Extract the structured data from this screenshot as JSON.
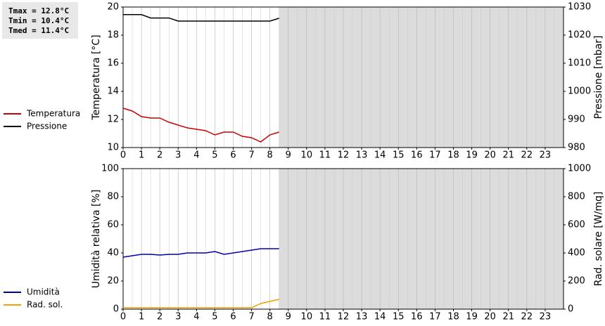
{
  "stats": [
    "Tmax = 12.8°C",
    "Tmin = 10.4°C",
    "Tmed = 11.4°C"
  ],
  "chart_data": [
    {
      "type": "line",
      "ylabel": "Temperatura [°C]",
      "y2label": "Pressione [mbar]",
      "x": [
        0,
        0.5,
        1,
        1.5,
        2,
        2.5,
        3,
        3.5,
        4,
        4.5,
        5,
        5.5,
        6,
        6.5,
        7,
        7.5,
        8,
        8.5
      ],
      "xlim": [
        0,
        24
      ],
      "xticks": [
        0,
        1,
        2,
        3,
        4,
        5,
        6,
        7,
        8,
        9,
        10,
        11,
        12,
        13,
        14,
        15,
        16,
        17,
        18,
        19,
        20,
        21,
        22,
        23
      ],
      "ylim": [
        10,
        20
      ],
      "yticks": [
        10,
        12,
        14,
        16,
        18,
        20
      ],
      "y2lim": [
        980,
        1030
      ],
      "y2ticks": [
        980,
        990,
        1000,
        1010,
        1020,
        1030
      ],
      "grid": true,
      "series": [
        {
          "name": "Temperatura",
          "color": "#cc0000",
          "values": [
            12.8,
            12.6,
            12.2,
            12.1,
            12.1,
            11.8,
            11.6,
            11.4,
            11.3,
            11.2,
            10.9,
            11.1,
            11.1,
            10.8,
            10.7,
            10.4,
            10.9,
            11.1
          ]
        },
        {
          "name": "Pressione",
          "color": "#000000",
          "axis": "y2",
          "values": [
            1027.3,
            1027.3,
            1027.3,
            1026.1,
            1026.1,
            1026.1,
            1025,
            1025,
            1025,
            1025,
            1025,
            1025,
            1025,
            1025,
            1025,
            1025,
            1025,
            1026
          ]
        }
      ]
    },
    {
      "type": "line",
      "ylabel": "Umidità relativa [%]",
      "y2label": "Rad. solare [W/mq]",
      "x": [
        0,
        0.5,
        1,
        1.5,
        2,
        2.5,
        3,
        3.5,
        4,
        4.5,
        5,
        5.5,
        6,
        6.5,
        7,
        7.5,
        8,
        8.5
      ],
      "xlim": [
        0,
        24
      ],
      "xticks": [
        0,
        1,
        2,
        3,
        4,
        5,
        6,
        7,
        8,
        9,
        10,
        11,
        12,
        13,
        14,
        15,
        16,
        17,
        18,
        19,
        20,
        21,
        22,
        23
      ],
      "ylim": [
        0,
        100
      ],
      "yticks": [
        0,
        20,
        40,
        60,
        80,
        100
      ],
      "y2lim": [
        0,
        1000
      ],
      "y2ticks": [
        0,
        200,
        400,
        600,
        800,
        1000
      ],
      "grid": true,
      "series": [
        {
          "name": "Umidità",
          "color": "#0000aa",
          "values": [
            37,
            38,
            39,
            39,
            38.5,
            39,
            39,
            40,
            40,
            40,
            41,
            39,
            40,
            41,
            42,
            43,
            43,
            43
          ]
        },
        {
          "name": "Rad. sol.",
          "color": "#f0a000",
          "axis": "y2",
          "values": [
            10,
            10,
            10,
            10,
            10,
            10,
            10,
            10,
            10,
            10,
            10,
            10,
            10,
            10,
            10,
            40,
            55,
            70
          ]
        }
      ]
    }
  ]
}
